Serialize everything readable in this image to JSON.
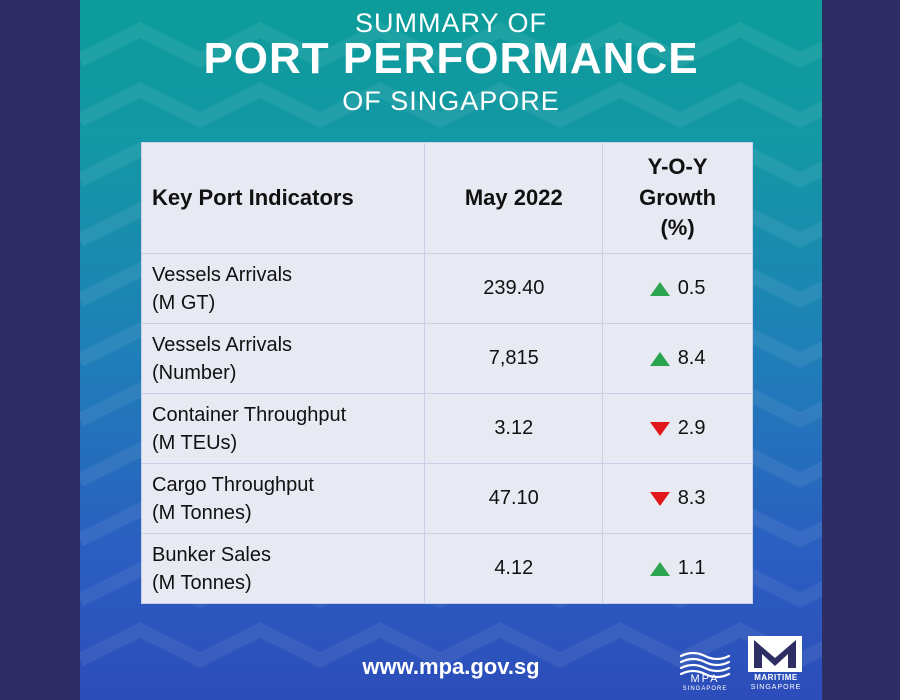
{
  "title": {
    "line1": "SUMMARY OF",
    "line2": "PORT PERFORMANCE",
    "line3": "OF SINGAPORE"
  },
  "table": {
    "headers": {
      "indicator": "Key Port Indicators",
      "period": "May 2022",
      "growth_line1": "Y-O-Y",
      "growth_line2": "Growth",
      "growth_line3": "(%)"
    },
    "rows": [
      {
        "label1": "Vessels Arrivals",
        "label2": "(M GT)",
        "value": "239.40",
        "growth": "0.5",
        "direction": "up"
      },
      {
        "label1": "Vessels Arrivals",
        "label2": "(Number)",
        "value": "7,815",
        "growth": "8.4",
        "direction": "up"
      },
      {
        "label1": "Container Throughput",
        "label2": "(M TEUs)",
        "value": "3.12",
        "growth": "2.9",
        "direction": "down"
      },
      {
        "label1": "Cargo Throughput",
        "label2": "(M Tonnes)",
        "value": "47.10",
        "growth": "8.3",
        "direction": "down"
      },
      {
        "label1": "Bunker Sales",
        "label2": "(M Tonnes)",
        "value": "4.12",
        "growth": "1.1",
        "direction": "up"
      }
    ]
  },
  "footer": {
    "website": "www.mpa.gov.sg",
    "mpa_logo_text": "MPA",
    "mpa_logo_sub": "SINGAPORE",
    "ms_logo_text": "MARITIME",
    "ms_logo_sub": "SINGAPORE"
  },
  "colors": {
    "up_arrow": "#2aa44f",
    "down_arrow": "#e01818",
    "table_bg": "#e8eaf3",
    "frame_bg": "#2f2e64"
  }
}
